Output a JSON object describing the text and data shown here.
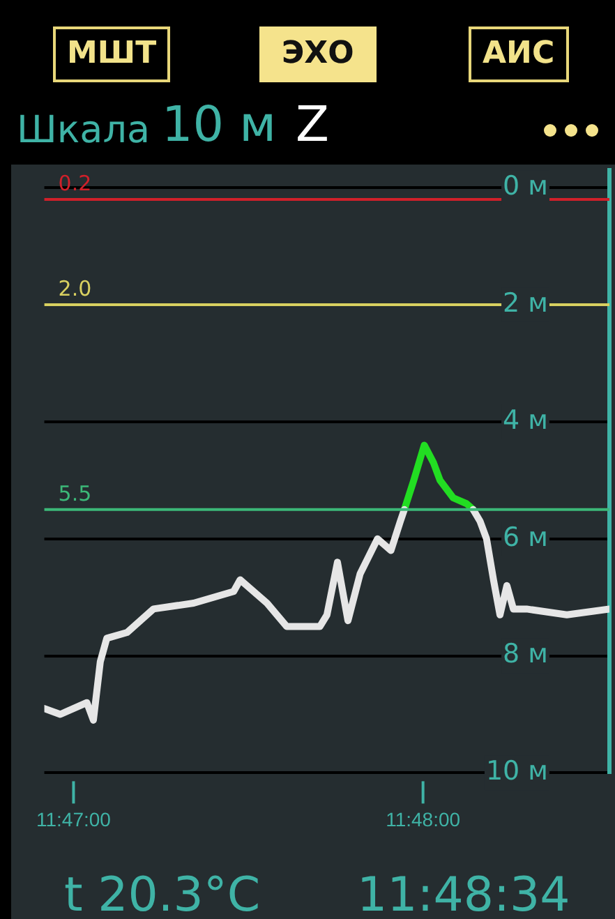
{
  "chart_data": {
    "type": "line",
    "annotations": [
      "МШТ",
      "ЭХО",
      "АИС",
      "Шкала",
      "10 м",
      "Z",
      "t 20.3°C",
      "11:48:34"
    ],
    "x": [
      11.78194,
      11.7827,
      11.78397,
      11.78428,
      11.78461,
      11.78492,
      11.78589,
      11.78714,
      11.78906,
      11.79097,
      11.79128,
      11.79256,
      11.7935,
      11.79508,
      11.79542,
      11.79592,
      11.79642,
      11.797,
      11.79783,
      11.79847,
      11.79892,
      11.79911,
      11.79956,
      11.80006,
      11.8005,
      11.80081,
      11.80144,
      11.80208,
      11.80239,
      11.80272,
      11.80303,
      11.80336,
      11.80367,
      11.804,
      11.80431,
      11.80494,
      11.80686,
      11.80889
    ],
    "series": [
      {
        "color": "#e6e6e6",
        "values": [
          8.9,
          9.0,
          8.8,
          9.1,
          8.1,
          7.7,
          7.6,
          7.2,
          7.1,
          6.9,
          6.7,
          7.1,
          7.5,
          7.5,
          7.3,
          6.4,
          7.4,
          6.6,
          6.0,
          6.2,
          5.7,
          5.5,
          null,
          null,
          null,
          null,
          null,
          null,
          5.5,
          5.7,
          6.0,
          6.7,
          7.3,
          6.8,
          7.2,
          7.2,
          7.3,
          7.2
        ]
      },
      {
        "color": "#22dd22",
        "values": [
          null,
          null,
          null,
          null,
          null,
          null,
          null,
          null,
          null,
          null,
          null,
          null,
          null,
          null,
          null,
          null,
          null,
          null,
          null,
          null,
          null,
          5.5,
          5.0,
          4.4,
          4.7,
          5.0,
          5.3,
          5.4,
          5.5,
          null,
          null,
          null,
          null,
          null,
          null,
          null,
          null,
          null
        ]
      }
    ],
    "xlim": [
      11.78194,
      11.80889
    ],
    "xticks": [
      {
        "value": 11.783333,
        "label": "11:47:00"
      },
      {
        "value": 11.8,
        "label": "11:48:00"
      }
    ],
    "ylim": [
      10,
      -0.3
    ],
    "yticks": [
      {
        "value": 0,
        "label": "0 м"
      },
      {
        "value": 2,
        "label": "2 м"
      },
      {
        "value": 4,
        "label": "4 м"
      },
      {
        "value": 6,
        "label": "6 м"
      },
      {
        "value": 8,
        "label": "8 м"
      },
      {
        "value": 10,
        "label": "10 м"
      }
    ],
    "grid": "y",
    "legend": false,
    "marker": "none",
    "line_style": "solid",
    "ref_lines": [
      {
        "axis": "y",
        "value": 0.2,
        "label": "0.2",
        "color": "#d0202a"
      },
      {
        "axis": "y",
        "value": 2,
        "label": "2.0",
        "color": "#d8d060"
      },
      {
        "axis": "y",
        "value": 5.5,
        "label": "5.5",
        "color": "#3cb878"
      }
    ]
  }
}
